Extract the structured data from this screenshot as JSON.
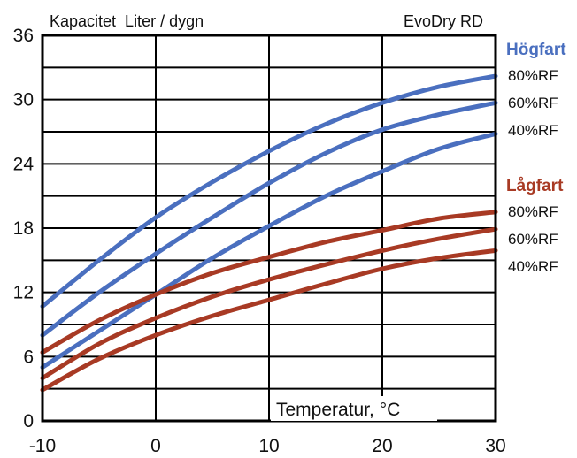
{
  "chart_data": {
    "type": "line",
    "title": "Kapacitet  Liter / dygn",
    "model": "EvoDry RD",
    "xlabel": "Temperatur, °C",
    "ylabel": "",
    "xlim": [
      -10,
      30
    ],
    "ylim": [
      0,
      36
    ],
    "x_ticks": [
      "-10",
      "0",
      "10",
      "20",
      "30"
    ],
    "y_ticks": [
      "0",
      "6",
      "12",
      "18",
      "24",
      "30",
      "36"
    ],
    "grid": true,
    "x": [
      -10,
      -5,
      0,
      5,
      10,
      15,
      20,
      25,
      30
    ],
    "groups": [
      {
        "name": "Högfart",
        "color": "#4a6fbf"
      },
      {
        "name": "Lågfart",
        "color": "#a83a24"
      }
    ],
    "series": [
      {
        "name": "80%RF",
        "group": "Högfart",
        "color": "#4a6fbf",
        "values": [
          10.7,
          15.0,
          19.0,
          22.3,
          25.2,
          27.7,
          29.7,
          31.2,
          32.2
        ]
      },
      {
        "name": "60%RF",
        "group": "Högfart",
        "color": "#4a6fbf",
        "values": [
          8.0,
          12.0,
          15.6,
          19.0,
          22.2,
          25.0,
          27.2,
          28.6,
          29.7
        ]
      },
      {
        "name": "40%RF",
        "group": "Högfart",
        "color": "#4a6fbf",
        "values": [
          5.0,
          8.4,
          11.8,
          15.2,
          18.2,
          21.0,
          23.3,
          25.4,
          26.8
        ]
      },
      {
        "name": "80%RF",
        "group": "Lågfart",
        "color": "#a83a24",
        "values": [
          6.4,
          9.4,
          11.8,
          13.8,
          15.3,
          16.7,
          17.8,
          18.9,
          19.5
        ]
      },
      {
        "name": "60%RF",
        "group": "Lågfart",
        "color": "#a83a24",
        "values": [
          4.0,
          7.2,
          9.6,
          11.6,
          13.2,
          14.6,
          15.9,
          17.0,
          17.9
        ]
      },
      {
        "name": "40%RF",
        "group": "Lågfart",
        "color": "#a83a24",
        "values": [
          2.9,
          5.8,
          8.0,
          9.8,
          11.3,
          12.8,
          14.2,
          15.2,
          15.9
        ]
      }
    ]
  }
}
